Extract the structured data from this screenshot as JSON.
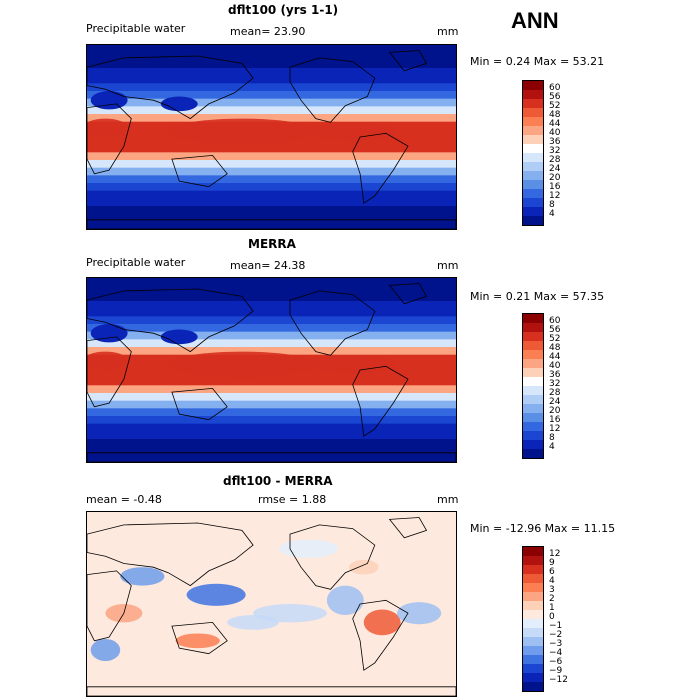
{
  "header": {
    "season": "ANN"
  },
  "panels": [
    {
      "title": "dflt100 (yrs 1-1)",
      "left_label": "Precipitable water",
      "center_label": "mean=  23.90",
      "unit": "mm",
      "min_max": "Min =   0.24  Max =  53.21",
      "colorbar": {
        "labels": [
          "60",
          "56",
          "52",
          "48",
          "44",
          "40",
          "36",
          "32",
          "28",
          "24",
          "20",
          "16",
          "12",
          "8",
          "4"
        ],
        "colors": [
          "#8b0000",
          "#b2120e",
          "#d7301f",
          "#ef5a36",
          "#fb7f52",
          "#fca583",
          "#fdd0b8",
          "#ffffff",
          "#d6e6fb",
          "#b0cdf6",
          "#85b0ef",
          "#5a8fe6",
          "#3468e0",
          "#1a46d2",
          "#0a24b8",
          "#00128c"
        ]
      },
      "map": {
        "kind": "mean"
      }
    },
    {
      "title": "MERRA",
      "left_label": "Precipitable water",
      "center_label": "mean=  24.38",
      "unit": "mm",
      "min_max": "Min =   0.21  Max =  57.35",
      "colorbar": {
        "labels": [
          "60",
          "56",
          "52",
          "48",
          "44",
          "40",
          "36",
          "32",
          "28",
          "24",
          "20",
          "16",
          "12",
          "8",
          "4"
        ],
        "colors": [
          "#8b0000",
          "#b2120e",
          "#d7301f",
          "#ef5a36",
          "#fb7f52",
          "#fca583",
          "#fdd0b8",
          "#ffffff",
          "#d6e6fb",
          "#b0cdf6",
          "#85b0ef",
          "#5a8fe6",
          "#3468e0",
          "#1a46d2",
          "#0a24b8",
          "#00128c"
        ]
      },
      "map": {
        "kind": "mean"
      }
    },
    {
      "title": "dflt100 - MERRA",
      "left_label": "mean =   -0.48",
      "center_label": "rmse =    1.88",
      "unit": "mm",
      "min_max": "Min = -12.96  Max =  11.15",
      "colorbar": {
        "labels": [
          "12",
          "9",
          "6",
          "4",
          "3",
          "2",
          "1",
          "0",
          "−1",
          "−2",
          "−3",
          "−4",
          "−6",
          "−9",
          "−12"
        ],
        "colors": [
          "#8b0000",
          "#b2120e",
          "#d7301f",
          "#ef5a36",
          "#fb7f52",
          "#fca583",
          "#fdd0b8",
          "#fde9de",
          "#e3eefc",
          "#c6dbf8",
          "#9dbff2",
          "#6f9deb",
          "#3f73e2",
          "#1a46d2",
          "#0a24b8",
          "#00128c"
        ]
      },
      "map": {
        "kind": "diff"
      }
    }
  ]
}
